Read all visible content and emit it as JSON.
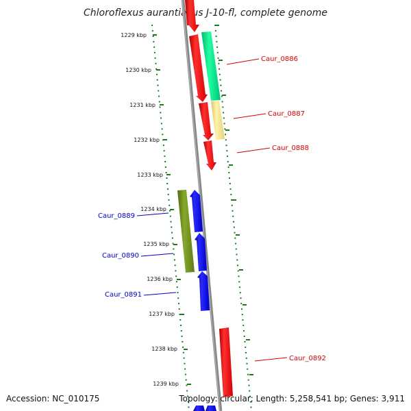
{
  "title": "Chloroflexus aurantiacus J-10-fl, complete genome",
  "accession": "Accession: NC_010175",
  "topology": "Topology: circular; Length: 5,258,541 bp; Genes: 3,911",
  "colors": {
    "forward_strand": "#ff0000",
    "reverse_strand": "#0000ff",
    "highlight_green": "#00e48a",
    "highlight_yellow": "#f0e08a",
    "highlight_olive": "#6e8e1c",
    "backbone": "#888888",
    "ruler": "#1a7a1a",
    "label_red": "#d40000",
    "label_blue": "#0000c8"
  },
  "ruler_ticks": [
    "1229 kbp",
    "1230 kbp",
    "1231 kbp",
    "1232 kbp",
    "1233 kbp",
    "1234 kbp",
    "1235 kbp",
    "1236 kbp",
    "1237 kbp",
    "1238 kbp",
    "1239 kbp"
  ],
  "gene_labels": [
    {
      "text": "Caur_0886",
      "strand": "forward"
    },
    {
      "text": "Caur_0887",
      "strand": "forward"
    },
    {
      "text": "Caur_0888",
      "strand": "forward"
    },
    {
      "text": "Caur_0889",
      "strand": "reverse"
    },
    {
      "text": "Caur_0890",
      "strand": "reverse"
    },
    {
      "text": "Caur_0891",
      "strand": "reverse"
    },
    {
      "text": "Caur_0892",
      "strand": "forward"
    }
  ]
}
